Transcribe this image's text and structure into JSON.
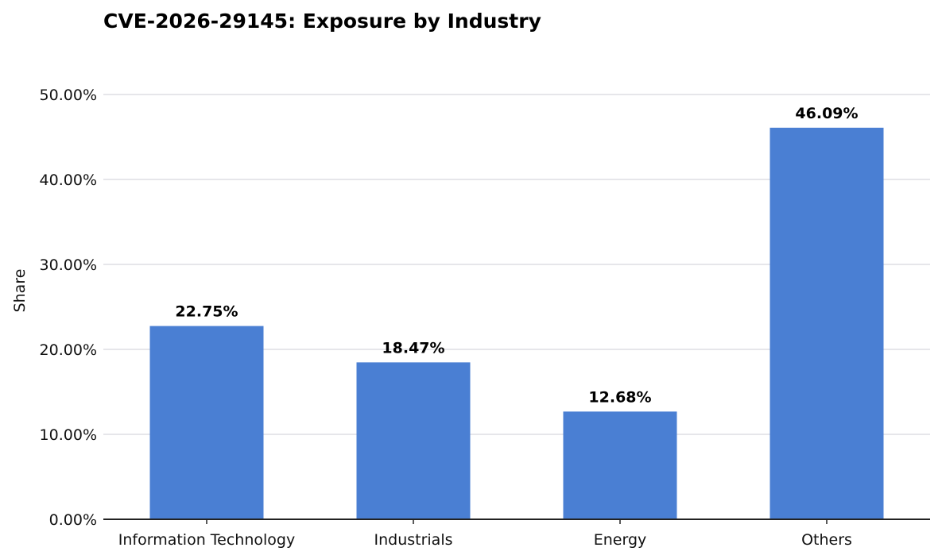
{
  "chart_data": {
    "type": "bar",
    "title": "CVE-2026-29145: Exposure by Industry",
    "xlabel": "",
    "ylabel": "Share",
    "categories": [
      "Information Technology",
      "Industrials",
      "Energy",
      "Others"
    ],
    "values": [
      22.75,
      18.47,
      12.68,
      46.09
    ],
    "data_labels": [
      "22.75%",
      "18.47%",
      "12.68%",
      "46.09%"
    ],
    "ylim": [
      0,
      50
    ],
    "yticks": [
      0,
      10,
      20,
      30,
      40,
      50
    ],
    "ytick_labels": [
      "0.00%",
      "10.00%",
      "20.00%",
      "30.00%",
      "40.00%",
      "50.00%"
    ],
    "grid": true,
    "legend": "none",
    "colors": {
      "bar": "#4a7fd3",
      "grid": "#e6e6ea",
      "axis": "#222222"
    }
  }
}
